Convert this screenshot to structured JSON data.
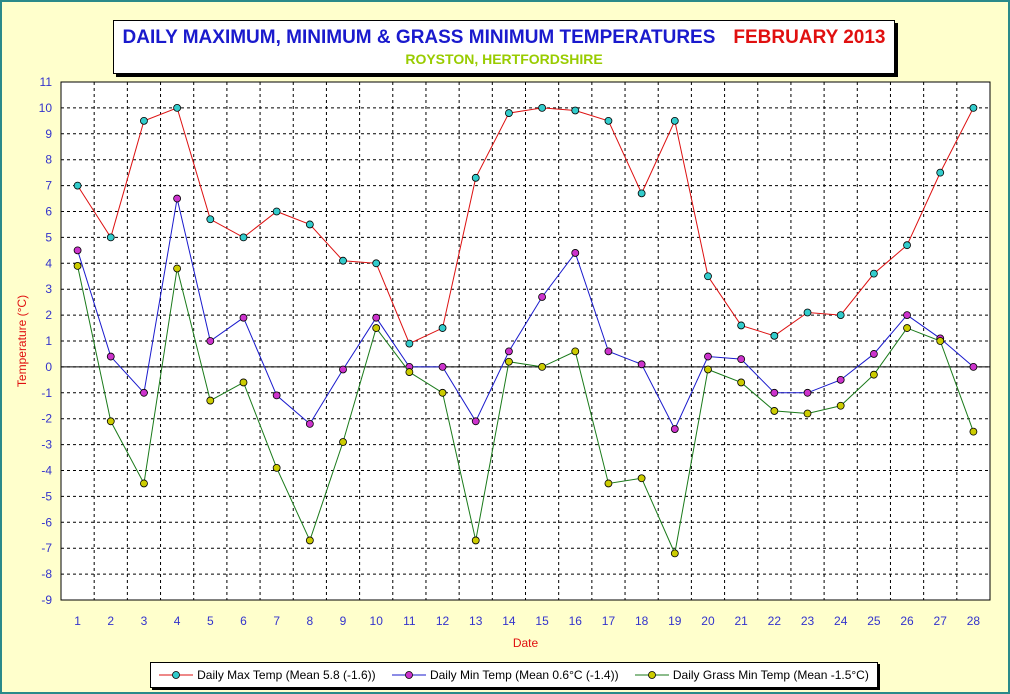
{
  "header": {
    "title": "DAILY MAXIMUM, MINIMUM & GRASS MINIMUM TEMPERATURES",
    "month": "FEBRUARY 2013",
    "subtitle": "ROYSTON, HERTFORDSHIRE"
  },
  "chart_data": {
    "type": "line",
    "xlabel": "Date",
    "ylabel": "Temperature (°C)",
    "ylim": [
      -9,
      11
    ],
    "grid": true,
    "legend_position": "bottom",
    "x": [
      1,
      2,
      3,
      4,
      5,
      6,
      7,
      8,
      9,
      10,
      11,
      12,
      13,
      14,
      15,
      16,
      17,
      18,
      19,
      20,
      21,
      22,
      23,
      24,
      25,
      26,
      27,
      28
    ],
    "series": [
      {
        "name": "Daily Max Temp (Mean 5.8 (-1.6))",
        "line_color": "#dd1111",
        "marker_color": "#33cccc",
        "values": [
          7.0,
          5.0,
          9.5,
          10.0,
          5.7,
          5.0,
          6.0,
          5.5,
          4.1,
          4.0,
          0.9,
          1.5,
          7.3,
          9.8,
          10.0,
          9.9,
          9.5,
          6.7,
          9.5,
          3.5,
          1.6,
          1.2,
          2.1,
          2.0,
          3.6,
          4.7,
          7.5,
          10.0
        ]
      },
      {
        "name": "Daily Min Temp (Mean 0.6°C (-1.4))",
        "line_color": "#1a1acd",
        "marker_color": "#cc33cc",
        "values": [
          4.5,
          0.4,
          -1.0,
          6.5,
          1.0,
          1.9,
          -1.1,
          -2.2,
          -0.1,
          1.9,
          0.0,
          0.0,
          -2.1,
          0.6,
          2.7,
          4.4,
          0.6,
          0.1,
          -2.4,
          0.4,
          0.3,
          -1.0,
          -1.0,
          -0.5,
          0.5,
          2.0,
          1.1,
          0.0
        ]
      },
      {
        "name": "Daily Grass Min Temp (Mean -1.5°C)",
        "line_color": "#1a7a1a",
        "marker_color": "#cccc00",
        "values": [
          3.9,
          -2.1,
          -4.5,
          3.8,
          -1.3,
          -0.6,
          -3.9,
          -6.7,
          -2.9,
          1.5,
          -0.2,
          -1.0,
          -6.7,
          0.2,
          0.0,
          0.6,
          -4.5,
          -4.3,
          -7.2,
          -0.1,
          -0.6,
          -1.7,
          -1.8,
          -1.5,
          -0.3,
          1.5,
          1.0,
          -2.5
        ]
      }
    ]
  }
}
